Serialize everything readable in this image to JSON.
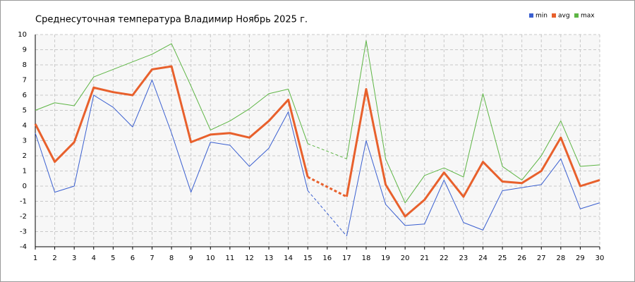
{
  "chart_data": {
    "type": "line",
    "title": "Среднесуточная температура Владимир  Ноябрь 2025 г.",
    "x": [
      1,
      2,
      3,
      4,
      5,
      6,
      7,
      8,
      9,
      10,
      11,
      12,
      13,
      14,
      15,
      16,
      17,
      18,
      19,
      20,
      21,
      22,
      23,
      24,
      25,
      26,
      27,
      28,
      29,
      30
    ],
    "xlim": [
      1,
      30
    ],
    "xticks": [
      1,
      2,
      3,
      4,
      5,
      6,
      7,
      8,
      9,
      10,
      11,
      12,
      13,
      14,
      15,
      16,
      17,
      18,
      19,
      20,
      21,
      22,
      23,
      24,
      25,
      26,
      27,
      28,
      29,
      30
    ],
    "ylim": [
      -4,
      10
    ],
    "yticks": [
      -4,
      -3,
      -2,
      -1,
      0,
      1,
      2,
      3,
      4,
      5,
      6,
      7,
      8,
      9,
      10
    ],
    "grid": true,
    "legend": "top-right",
    "series": [
      {
        "name": "min",
        "color": "#3a5fd0",
        "values": [
          3.5,
          -0.4,
          0,
          6,
          5.2,
          3.9,
          7,
          3.5,
          -0.4,
          2.9,
          2.7,
          1.3,
          2.5,
          4.9,
          -0.3,
          null,
          -3.3,
          3,
          -1.2,
          -2.6,
          -2.5,
          0.4,
          -2.4,
          -2.9,
          -0.3,
          -0.1,
          0.1,
          1.8,
          -1.5,
          -1.1
        ]
      },
      {
        "name": "avg",
        "color": "#e8602c",
        "values": [
          4.1,
          1.6,
          2.9,
          6.5,
          6.2,
          6,
          7.7,
          7.9,
          2.9,
          3.4,
          3.5,
          3.2,
          4.3,
          5.7,
          0.6,
          null,
          -0.7,
          6.4,
          0.1,
          -2,
          -0.9,
          0.9,
          -0.7,
          1.6,
          0.3,
          0.2,
          1,
          3.2,
          0,
          0.4
        ]
      },
      {
        "name": "max",
        "color": "#5db544",
        "values": [
          5,
          5.5,
          5.3,
          7.2,
          7.7,
          8.2,
          8.7,
          9.4,
          6.6,
          3.7,
          4.3,
          5.1,
          6.1,
          6.4,
          2.8,
          null,
          1.8,
          9.6,
          1.8,
          -1.1,
          0.7,
          1.2,
          0.6,
          6.1,
          1.3,
          0.4,
          2,
          4.3,
          1.3,
          1.4
        ]
      }
    ]
  }
}
